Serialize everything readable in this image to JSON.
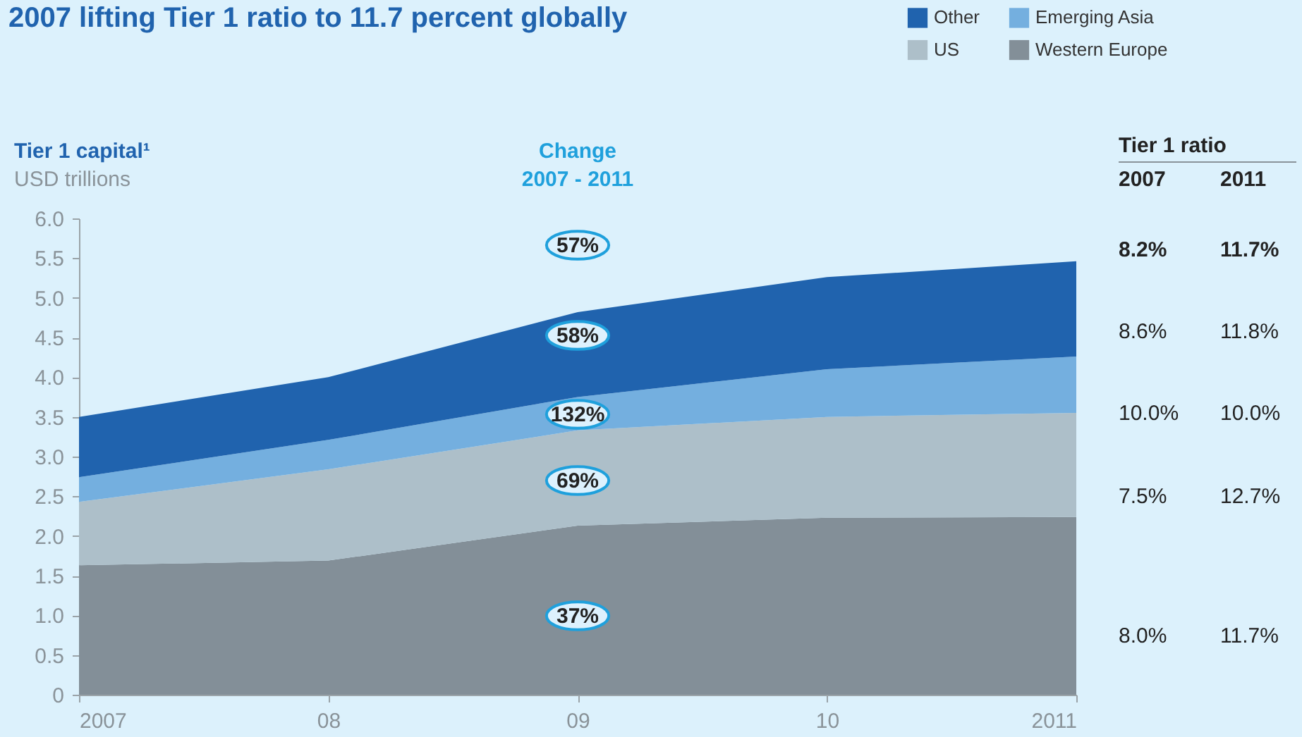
{
  "chart_data": {
    "type": "area",
    "stacked": true,
    "title": "2007 lifting Tier 1 ratio to 11.7 percent globally",
    "ylabel": "Tier 1 capital¹",
    "subtitle": "USD trillions",
    "categories": [
      "2007",
      "08",
      "09",
      "10",
      "2011"
    ],
    "series": [
      {
        "name": "Western Europe",
        "color": "#838f98",
        "values": [
          1.63,
          1.69,
          2.13,
          2.23,
          2.24
        ]
      },
      {
        "name": "US",
        "color": "#adbfc9",
        "values": [
          0.8,
          1.15,
          1.2,
          1.27,
          1.31
        ]
      },
      {
        "name": "Emerging Asia",
        "color": "#74afdf",
        "values": [
          0.31,
          0.37,
          0.42,
          0.6,
          0.71
        ]
      },
      {
        "name": "Other",
        "color": "#2063ae",
        "values": [
          0.76,
          0.79,
          1.07,
          1.16,
          1.2
        ]
      }
    ],
    "ylim": [
      0,
      6
    ],
    "yticks": [
      0,
      0.5,
      {
        "value": 1,
        "label": "1.0"
      },
      1.5,
      {
        "value": 2,
        "label": "2.0"
      },
      2.5,
      {
        "value": 3,
        "label": "3.0"
      },
      3.5,
      {
        "value": 4,
        "label": "4.0"
      },
      4.5,
      {
        "value": 5,
        "label": "5.0"
      },
      5.5,
      {
        "value": 6,
        "label": "6.0"
      }
    ],
    "grid": false,
    "legend": "top right",
    "annotations": [
      "57%",
      "58%",
      "132%",
      "69%",
      "37%",
      "Change",
      "2007 - 2011",
      "Tier 1 ratio",
      "2007",
      "2011",
      "8.2%",
      "11.7%",
      "8.6%",
      "11.8%",
      "10.0%",
      "10.0%",
      "7.5%",
      "12.7%",
      "8.0%",
      "11.7%"
    ]
  }
}
